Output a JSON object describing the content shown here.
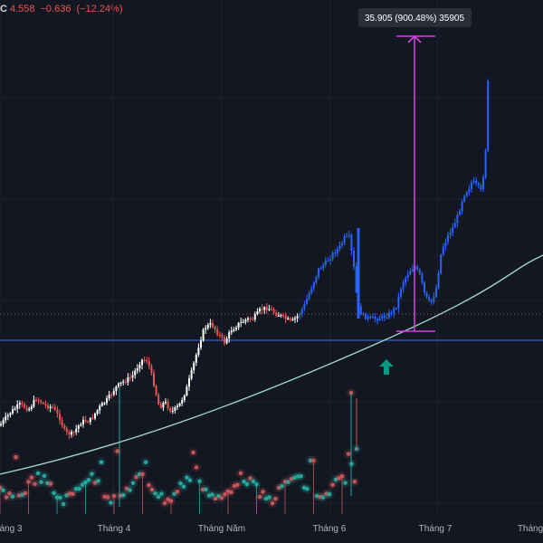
{
  "header": {
    "close_label": "C",
    "close_value": "4.558",
    "change": "−0.636",
    "change_pct": "(−12.24%)"
  },
  "colors": {
    "background": "#131722",
    "up": "#ffffff",
    "down": "#ef5350",
    "highlight_blue": "#2962ff",
    "measure": "#d63fe3",
    "curve": "#9fd3c7",
    "level_line": "#3b6bff",
    "dotted_line": "#b04a55",
    "arrow": "#089981",
    "osc_green": "#26a69a",
    "osc_red": "#c2555a"
  },
  "measure": {
    "label": "35.905 (900.48%) 35905"
  },
  "chart_data": {
    "type": "candlestick",
    "x_tick_labels": [
      "áng 3",
      "Tháng 4",
      "Tháng Năm",
      "Tháng 6",
      "Tháng 7",
      "Tháng"
    ],
    "series": [
      "price",
      "oscillator"
    ],
    "annotations": [
      "measure-range",
      "up-arrow",
      "support-curve",
      "horizontal-level",
      "dotted-level"
    ]
  }
}
